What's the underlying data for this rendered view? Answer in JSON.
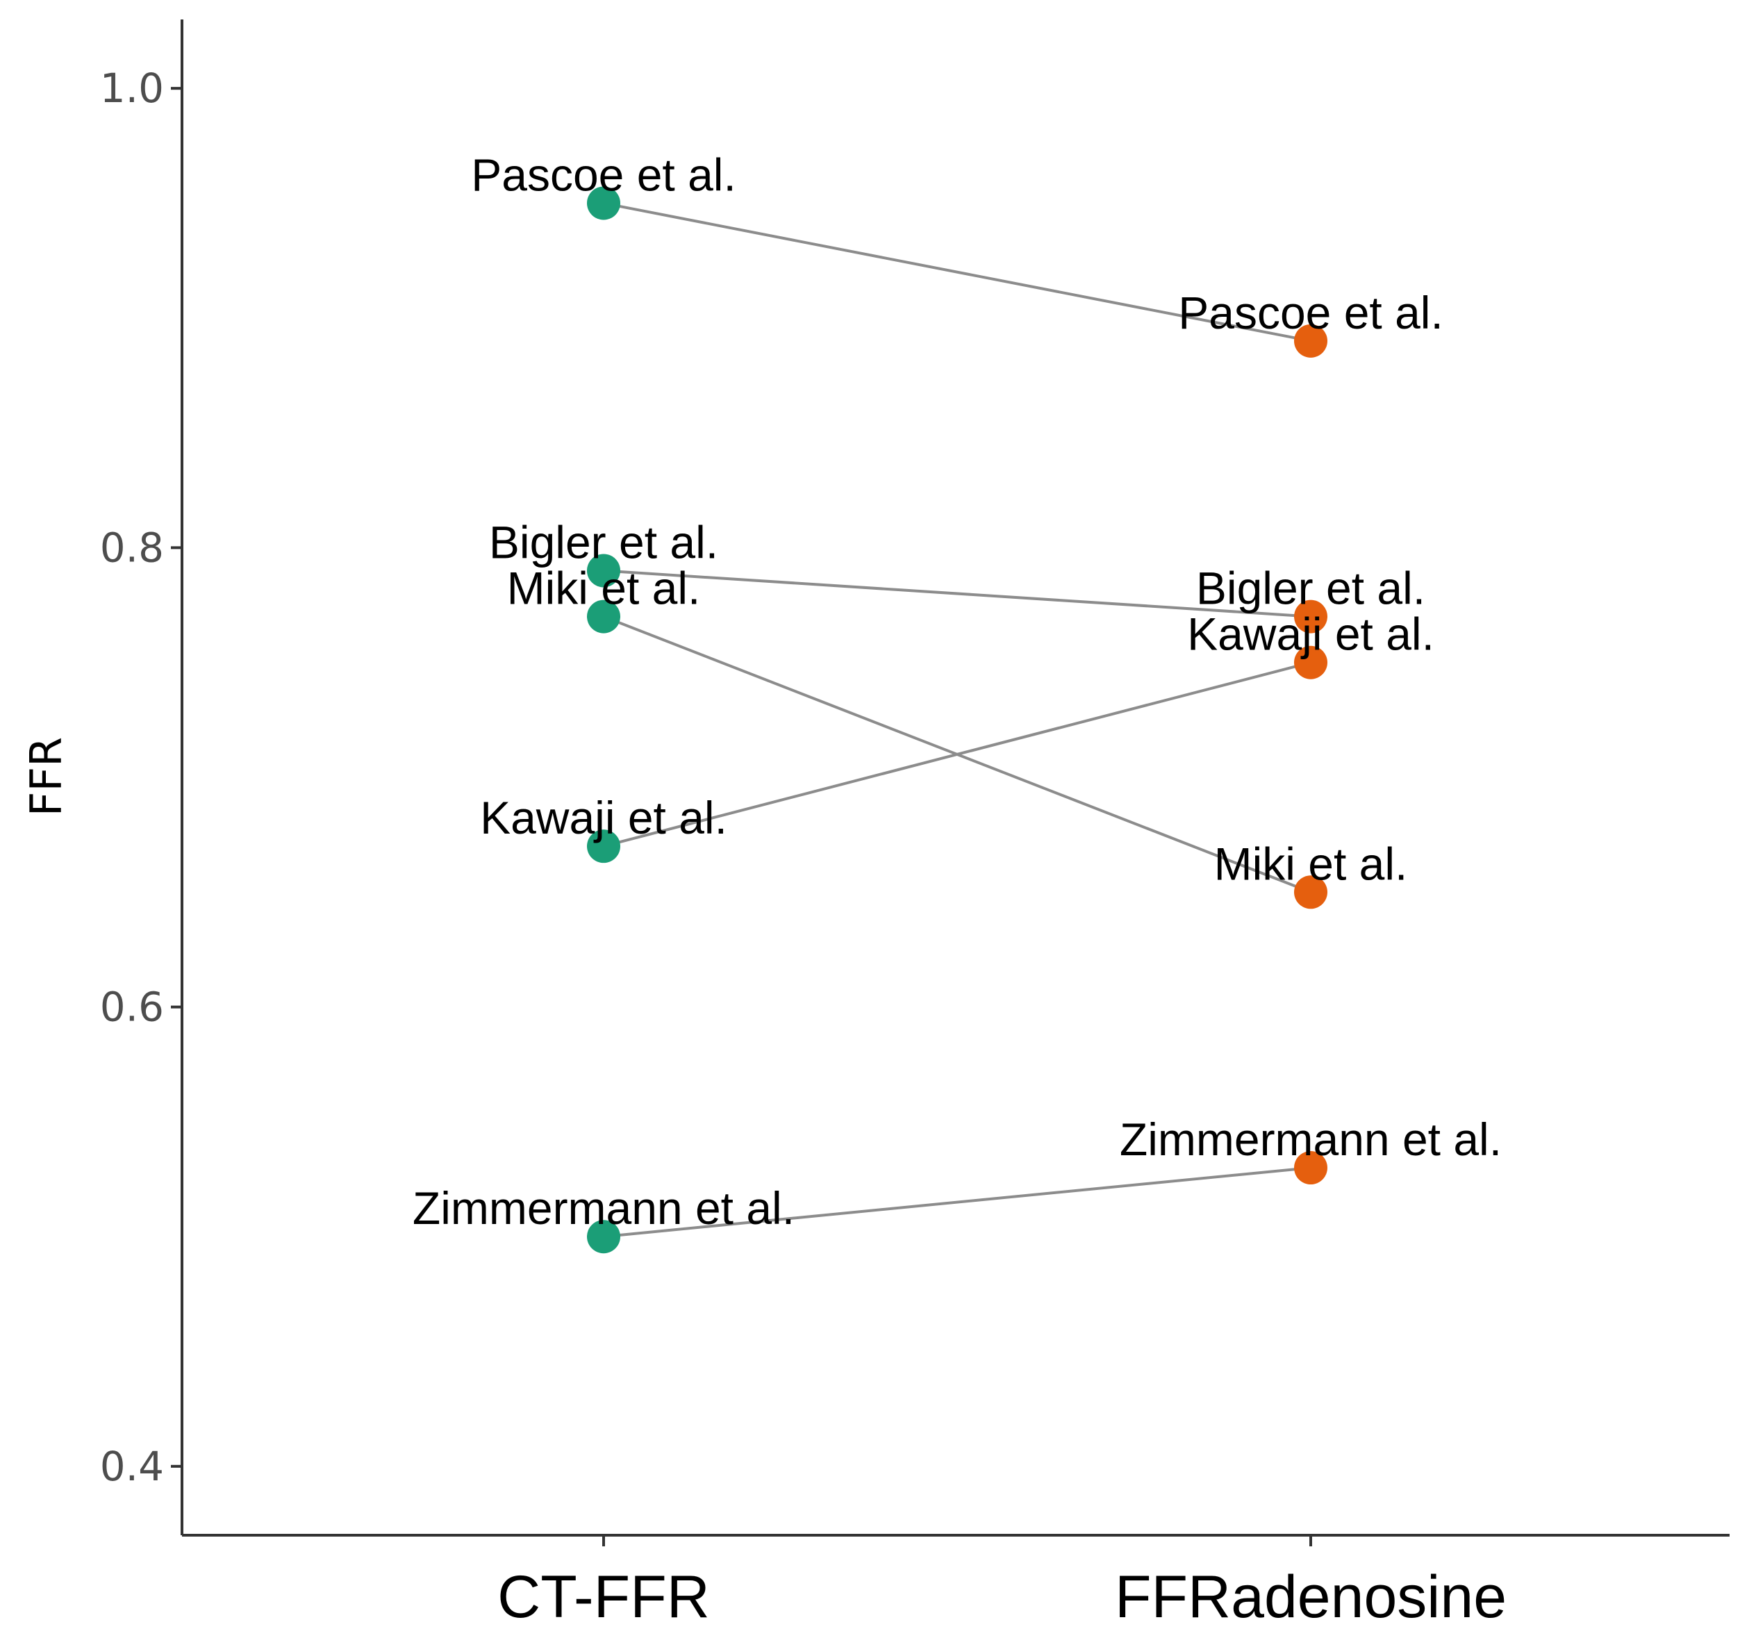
{
  "chart_data": {
    "type": "scatter",
    "title": "",
    "xlabel": "",
    "ylabel": "FFR",
    "ylim": [
      0.37,
      1.03
    ],
    "yticks": [
      0.4,
      0.6,
      0.8,
      1.0
    ],
    "ytick_labels": [
      "0.4",
      "0.6",
      "0.8",
      "1.0"
    ],
    "categories": [
      "CT-FFR",
      "FFRadenosine"
    ],
    "colors": {
      "CT-FFR": "#1b9e77",
      "FFRadenosine": "#e55f0e",
      "line": "#8c8c8c"
    },
    "grid": false,
    "legend": "none",
    "pairs": [
      {
        "study": "Pascoe et al.",
        "ct_ffr": 0.95,
        "ffr_adenosine": 0.89
      },
      {
        "study": "Bigler et al.",
        "ct_ffr": 0.79,
        "ffr_adenosine": 0.77
      },
      {
        "study": "Miki et al.",
        "ct_ffr": 0.77,
        "ffr_adenosine": 0.65
      },
      {
        "study": "Kawaji et al.",
        "ct_ffr": 0.67,
        "ffr_adenosine": 0.75
      },
      {
        "study": "Zimmermann et al.",
        "ct_ffr": 0.5,
        "ffr_adenosine": 0.53
      }
    ]
  }
}
